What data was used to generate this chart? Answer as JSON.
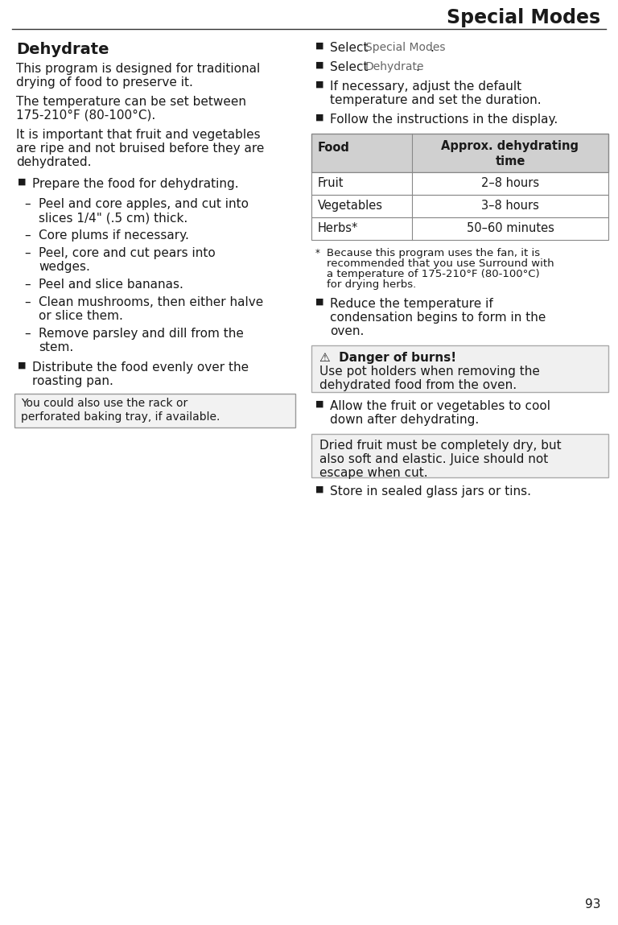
{
  "title": "Special Modes",
  "page_number": "93",
  "bg_color": "#ffffff",
  "left_col": {
    "heading": "Dehydrate",
    "para1": "This program is designed for traditional\ndrying of food to preserve it.",
    "para2": "The temperature can be set between\n175-210°F (80-100°C).",
    "para3": "It is important that fruit and vegetables\nare ripe and not bruised before they are\ndehydrated.",
    "bullet1": "Prepare the food for dehydrating.",
    "dashes": [
      [
        "Peel and core apples, and cut into",
        "slices 1/4\" (.5 cm) thick."
      ],
      [
        "Core plums if necessary."
      ],
      [
        "Peel, core and cut pears into",
        "wedges."
      ],
      [
        "Peel and slice bananas."
      ],
      [
        "Clean mushrooms, then either halve",
        "or slice them."
      ],
      [
        "Remove parsley and dill from the",
        "stem."
      ]
    ],
    "bullet2_line1": "Distribute the food evenly over the",
    "bullet2_line2": "roasting pan.",
    "note_line1": "You could also use the rack or",
    "note_line2": "perforated baking tray, if available."
  },
  "right_col": {
    "sel1_normal": "Select ",
    "sel1_mono": "Special Modes",
    "sel1_end": ".",
    "sel2_normal": "Select ",
    "sel2_mono": "Dehydrate",
    "sel2_end": ".",
    "bullet3_line1": "If necessary, adjust the default",
    "bullet3_line2": "temperature and set the duration.",
    "bullet4": "Follow the instructions in the display.",
    "table_h1": "Food",
    "table_h2": "Approx. dehydrating\ntime",
    "table_rows": [
      [
        "Fruit",
        "2–8 hours"
      ],
      [
        "Vegetables",
        "3–8 hours"
      ],
      [
        "Herbs*",
        "50–60 minutes"
      ]
    ],
    "foot_star": "*",
    "foot_lines": [
      "Because this program uses the fan, it is",
      "recommended that you use Surround with",
      "a temperature of 175-210°F (80-100°C)",
      "for drying herbs."
    ],
    "reduce_line1": "Reduce the temperature if",
    "reduce_line2": "condensation begins to form in the",
    "reduce_line3": "oven.",
    "danger_line1": "⚠  Danger of burns!",
    "danger_line2": "Use pot holders when removing the",
    "danger_line3": "dehydrated food from the oven.",
    "allow_line1": "Allow the fruit or vegetables to cool",
    "allow_line2": "down after dehydrating.",
    "dried_line1": "Dried fruit must be completely dry, but",
    "dried_line2": "also soft and elastic. Juice should not",
    "dried_line3": "escape when cut.",
    "store": "Store in sealed glass jars or tins."
  },
  "colors": {
    "text": "#1a1a1a",
    "mono_text": "#666666",
    "table_header_bg": "#d0d0d0",
    "box_bg": "#f0f0f0",
    "box_border": "#aaaaaa",
    "line": "#333333"
  },
  "sizes": {
    "title_fs": 17,
    "heading_fs": 14,
    "body_fs": 11,
    "small_fs": 9.5,
    "table_fs": 10.5,
    "mono_fs": 10
  }
}
